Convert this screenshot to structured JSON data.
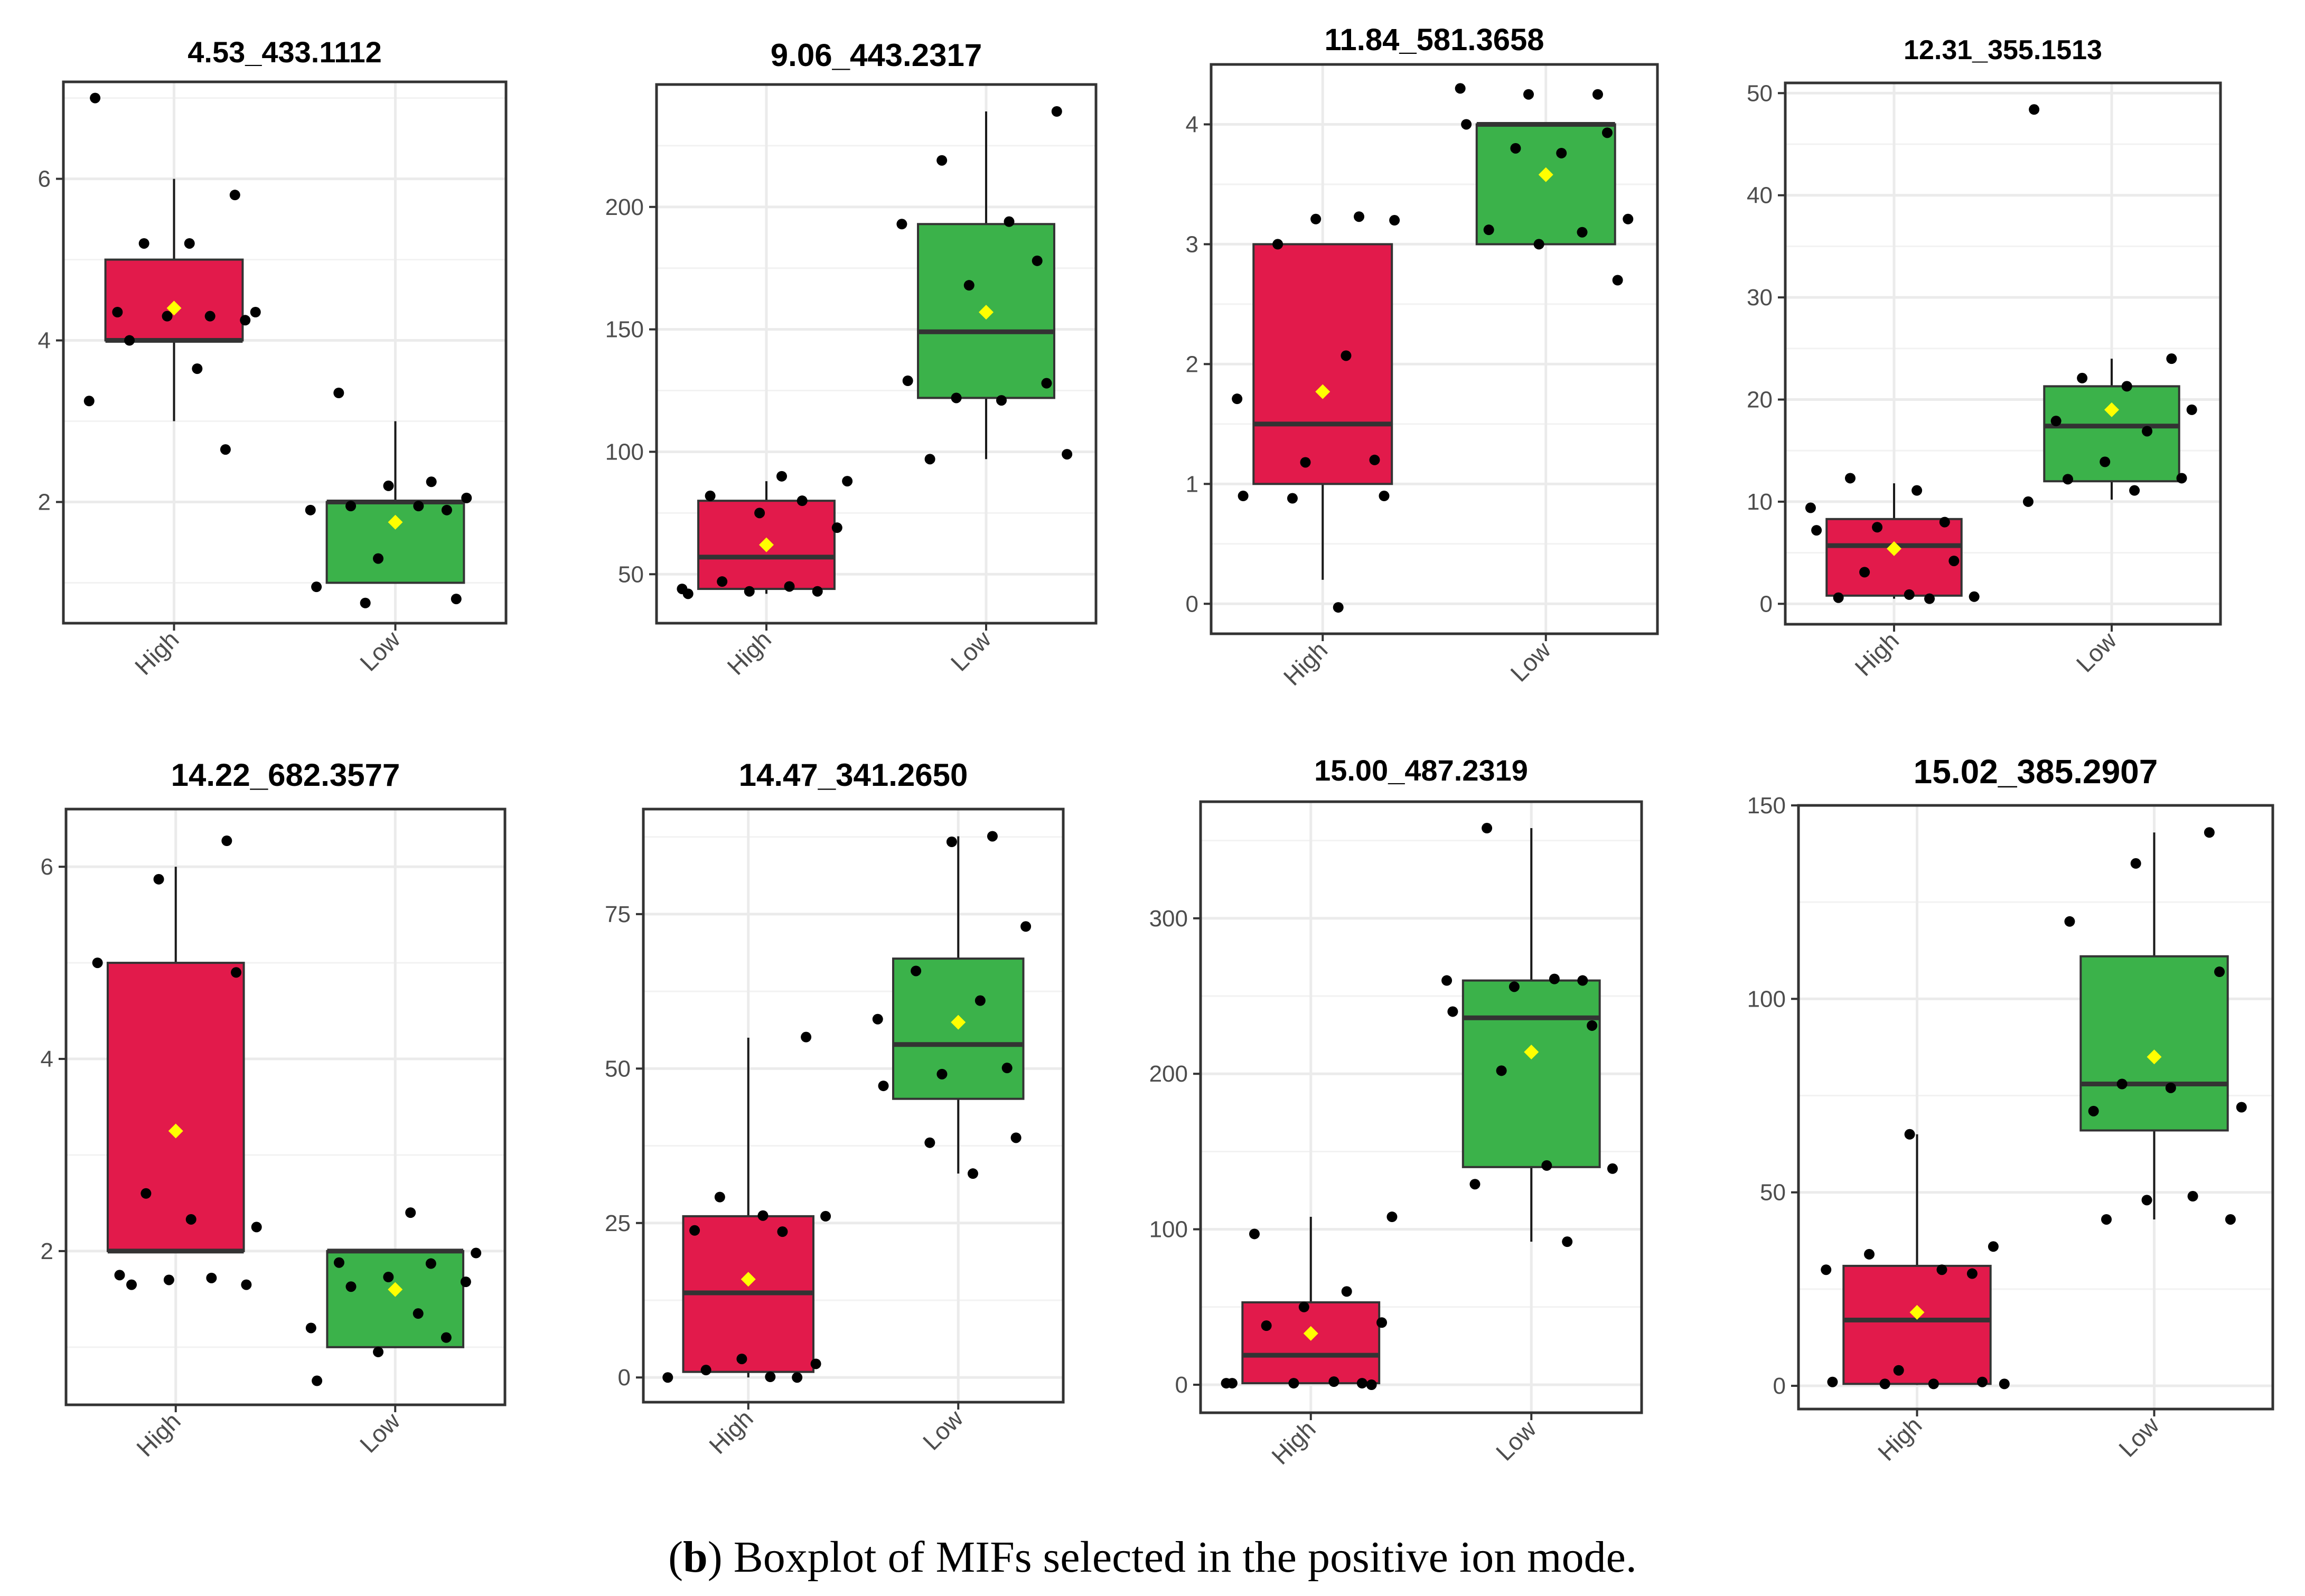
{
  "caption": {
    "letter": "b",
    "open": "(",
    "close": ")",
    "text": " Boxplot of MIFs selected in the positive ion mode."
  },
  "colors": {
    "high": "#e21a4b",
    "low": "#3bb24a",
    "mean": "#ffff00",
    "point": "#000000",
    "grid": "#ebebeb",
    "frame": "#333333"
  },
  "chart_data": [
    {
      "type": "box",
      "title": "4.53_433.1112",
      "categories": [
        "High",
        "Low"
      ],
      "ylim": [
        0.5,
        7.2
      ],
      "yticks": [
        2,
        4,
        6
      ],
      "boxes": [
        {
          "group": "High",
          "q1": 4.0,
          "median": 4.0,
          "q3": 5.0,
          "whisker_low": 3.0,
          "whisker_high": 6.0,
          "mean": 4.4,
          "points": [
            7.0,
            5.8,
            5.2,
            5.2,
            4.35,
            4.35,
            4.3,
            4.3,
            4.25,
            4.0,
            3.65,
            3.25,
            2.65
          ]
        },
        {
          "group": "Low",
          "q1": 1.0,
          "median": 2.0,
          "q3": 2.0,
          "whisker_low": 1.0,
          "whisker_high": 3.0,
          "mean": 1.75,
          "points": [
            3.35,
            2.25,
            2.2,
            2.05,
            1.95,
            1.95,
            1.9,
            1.9,
            1.3,
            0.95,
            0.8,
            0.75
          ]
        }
      ]
    },
    {
      "type": "box",
      "title": "9.06_443.2317",
      "categories": [
        "High",
        "Low"
      ],
      "ylim": [
        30,
        250
      ],
      "yticks": [
        50,
        100,
        150,
        200
      ],
      "boxes": [
        {
          "group": "High",
          "q1": 44,
          "median": 57,
          "q3": 80,
          "whisker_low": 42,
          "whisker_high": 88,
          "mean": 62,
          "points": [
            90,
            88,
            82,
            80,
            75,
            69,
            47,
            45,
            44,
            43,
            43,
            42
          ]
        },
        {
          "group": "Low",
          "q1": 122,
          "median": 149,
          "q3": 193,
          "whisker_low": 97,
          "whisker_high": 239,
          "mean": 157,
          "points": [
            239,
            219,
            194,
            193,
            178,
            168,
            129,
            128,
            122,
            121,
            99,
            97
          ]
        }
      ]
    },
    {
      "type": "box",
      "title": "11.84_581.3658",
      "categories": [
        "High",
        "Low"
      ],
      "ylim": [
        -0.25,
        4.5
      ],
      "yticks": [
        0,
        1,
        2,
        3,
        4
      ],
      "boxes": [
        {
          "group": "High",
          "q1": 1.0,
          "median": 1.5,
          "q3": 3.0,
          "whisker_low": 0.2,
          "whisker_high": 3.0,
          "mean": 1.77,
          "points": [
            3.23,
            3.21,
            3.2,
            3.0,
            2.07,
            1.71,
            1.2,
            1.18,
            0.9,
            0.9,
            0.88,
            -0.03
          ]
        },
        {
          "group": "Low",
          "q1": 3.0,
          "median": 4.0,
          "q3": 4.0,
          "whisker_low": 3.0,
          "whisker_high": 4.0,
          "mean": 3.58,
          "points": [
            4.3,
            4.25,
            4.25,
            4.0,
            3.93,
            3.8,
            3.76,
            3.21,
            3.12,
            3.1,
            3.0,
            2.7
          ]
        }
      ]
    },
    {
      "type": "box",
      "title": "12.31_355.1513",
      "categories": [
        "High",
        "Low"
      ],
      "ylim": [
        -2,
        51
      ],
      "yticks": [
        0,
        10,
        20,
        30,
        40,
        50
      ],
      "boxes": [
        {
          "group": "High",
          "q1": 0.8,
          "median": 5.7,
          "q3": 8.3,
          "whisker_low": 0.5,
          "whisker_high": 11.8,
          "mean": 5.4,
          "points": [
            12.3,
            11.1,
            9.4,
            8.0,
            7.5,
            7.2,
            4.2,
            3.1,
            0.9,
            0.7,
            0.6,
            0.5
          ]
        },
        {
          "group": "Low",
          "q1": 12.0,
          "median": 17.4,
          "q3": 21.3,
          "whisker_low": 10.2,
          "whisker_high": 24.0,
          "mean": 19.0,
          "points": [
            48.4,
            24.0,
            22.1,
            21.3,
            19.0,
            17.9,
            16.9,
            13.9,
            12.3,
            12.2,
            11.1,
            10.0
          ]
        }
      ]
    },
    {
      "type": "box",
      "title": "14.22_682.3577",
      "categories": [
        "High",
        "Low"
      ],
      "ylim": [
        0.4,
        6.6
      ],
      "yticks": [
        2,
        4,
        6
      ],
      "boxes": [
        {
          "group": "High",
          "q1": 2.0,
          "median": 2.0,
          "q3": 5.0,
          "whisker_low": 2.0,
          "whisker_high": 6.0,
          "mean": 3.25,
          "points": [
            6.27,
            5.87,
            5.0,
            4.9,
            2.6,
            2.33,
            2.25,
            1.75,
            1.72,
            1.7,
            1.65,
            1.65
          ]
        },
        {
          "group": "Low",
          "q1": 1.0,
          "median": 2.0,
          "q3": 2.0,
          "whisker_low": 1.0,
          "whisker_high": 2.0,
          "mean": 1.6,
          "points": [
            2.4,
            1.98,
            1.88,
            1.87,
            1.73,
            1.68,
            1.63,
            1.35,
            1.2,
            1.1,
            0.95,
            0.65
          ]
        }
      ]
    },
    {
      "type": "box",
      "title": "14.47_341.2650",
      "categories": [
        "High",
        "Low"
      ],
      "ylim": [
        -4,
        92
      ],
      "yticks": [
        0,
        25,
        50,
        75
      ],
      "boxes": [
        {
          "group": "High",
          "q1": 0.9,
          "median": 13.7,
          "q3": 26.1,
          "whisker_low": 0.0,
          "whisker_high": 55.0,
          "mean": 15.9,
          "points": [
            55.1,
            29.2,
            26.2,
            26.1,
            23.8,
            23.6,
            3.0,
            2.2,
            1.2,
            0.1,
            0.0,
            0.0
          ]
        },
        {
          "group": "Low",
          "q1": 45.1,
          "median": 53.9,
          "q3": 67.8,
          "whisker_low": 33.0,
          "whisker_high": 87.6,
          "mean": 57.5,
          "points": [
            87.6,
            86.7,
            73.0,
            65.8,
            61.0,
            58.0,
            50.1,
            49.1,
            47.2,
            38.8,
            38.0,
            33.0
          ]
        }
      ]
    },
    {
      "type": "box",
      "title": "15.00_487.2319",
      "categories": [
        "High",
        "Low"
      ],
      "ylim": [
        -18,
        375
      ],
      "yticks": [
        0,
        100,
        200,
        300
      ],
      "boxes": [
        {
          "group": "High",
          "q1": 1.0,
          "median": 19.0,
          "q3": 53.0,
          "whisker_low": 0.5,
          "whisker_high": 108.0,
          "mean": 33.0,
          "points": [
            108,
            97,
            60,
            50,
            40,
            38,
            2,
            1,
            1,
            1,
            1,
            0
          ]
        },
        {
          "group": "Low",
          "q1": 140.0,
          "median": 236.0,
          "q3": 260.0,
          "whisker_low": 92.0,
          "whisker_high": 358.0,
          "mean": 214.0,
          "points": [
            358,
            261,
            260,
            260,
            256,
            240,
            231,
            202,
            141,
            139,
            129,
            92
          ]
        }
      ]
    },
    {
      "type": "box",
      "title": "15.02_385.2907",
      "categories": [
        "High",
        "Low"
      ],
      "ylim": [
        -6,
        150
      ],
      "yticks": [
        0,
        50,
        100,
        150
      ],
      "boxes": [
        {
          "group": "High",
          "q1": 0.5,
          "median": 17.0,
          "q3": 31.0,
          "whisker_low": 0.2,
          "whisker_high": 65.0,
          "mean": 19.0,
          "points": [
            65,
            36,
            34,
            30,
            30,
            29,
            4,
            1,
            1,
            0.5,
            0.5,
            0.5
          ]
        },
        {
          "group": "Low",
          "q1": 66.0,
          "median": 78.0,
          "q3": 111.0,
          "whisker_low": 43.0,
          "whisker_high": 143.0,
          "mean": 85.0,
          "points": [
            143,
            135,
            120,
            107,
            78,
            77,
            72,
            71,
            49,
            48,
            43,
            43
          ]
        }
      ]
    }
  ]
}
